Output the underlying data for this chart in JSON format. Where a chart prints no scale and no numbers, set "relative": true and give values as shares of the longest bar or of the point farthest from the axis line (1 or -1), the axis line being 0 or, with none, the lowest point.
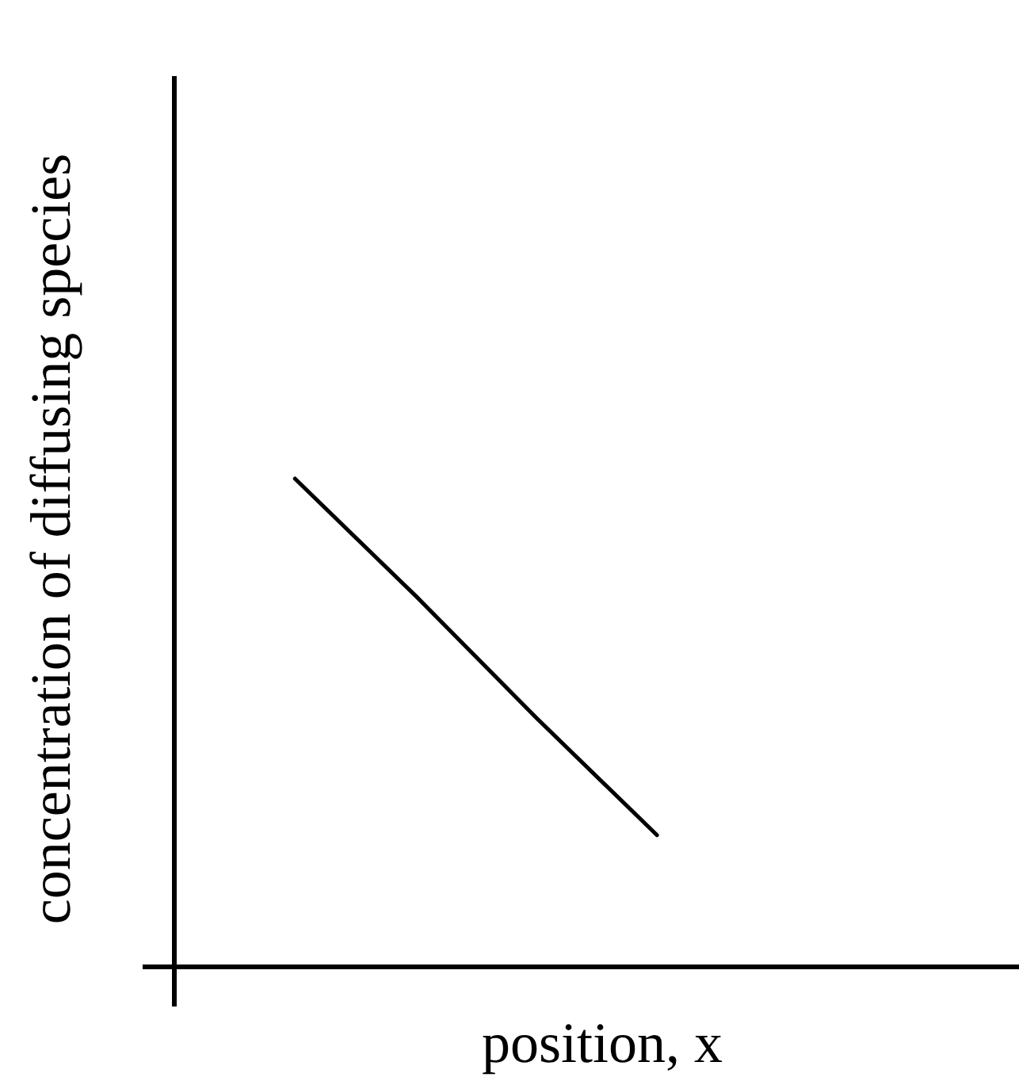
{
  "chart_data": {
    "type": "line",
    "xlabel": "position, x",
    "ylabel": "concentration of diffusing species",
    "categories": [
      null,
      null,
      null,
      null,
      null,
      null,
      null,
      null
    ],
    "values": [
      null,
      1,
      0.76,
      0.51,
      0.27,
      null,
      null,
      null
    ],
    "color": "#000000",
    "relative": true
  }
}
